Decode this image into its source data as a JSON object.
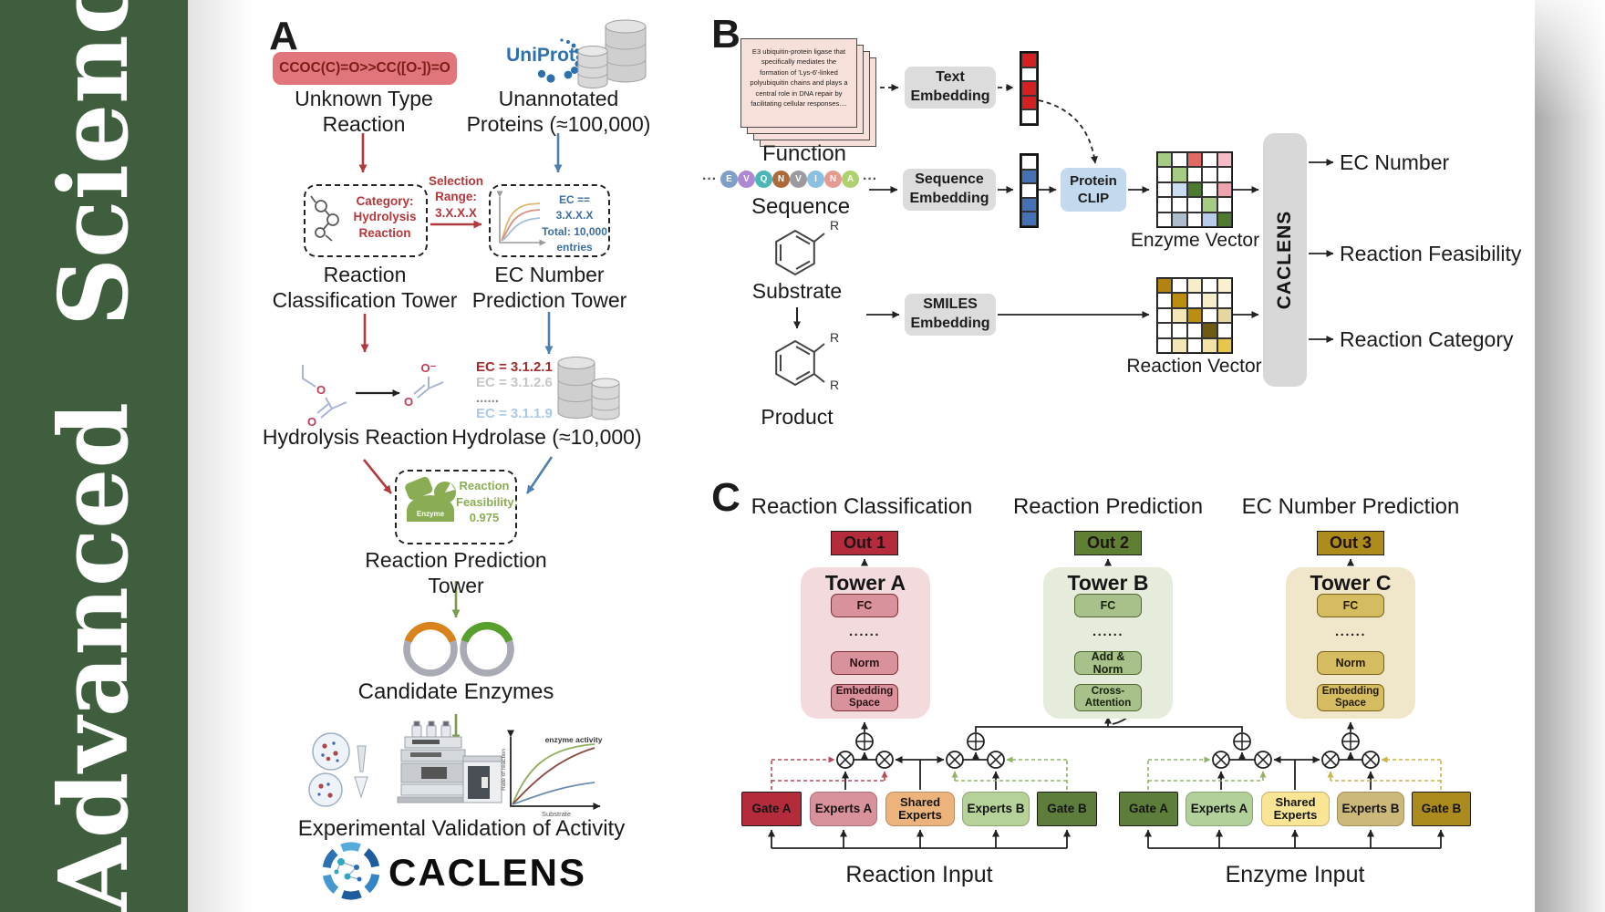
{
  "journal": {
    "title": "Advanced Science"
  },
  "panelA": {
    "label": "A",
    "smiles": "CCOC(C)=O>>CC([O-])=O",
    "unknown_reaction": [
      "Unknown Type",
      "Reaction"
    ],
    "uniprot": "UniProt",
    "unannotated_proteins": [
      "Unannotated",
      "Proteins (≈100,000)"
    ],
    "category_box": [
      "Category:",
      "Hydrolysis",
      "Reaction"
    ],
    "selection_range": [
      "Selection",
      "Range:",
      "3.X.X.X"
    ],
    "ec_box": [
      "EC == 3.X.X.X",
      "Total: 10,000",
      "entries"
    ],
    "classification_tower": [
      "Reaction",
      "Classification Tower"
    ],
    "ec_tower": [
      "EC Number",
      "Prediction Tower"
    ],
    "hydrolysis_reaction": "Hydrolysis Reaction",
    "ec_list": [
      {
        "text": "EC = 3.1.2.1",
        "color": "#a12c2c"
      },
      {
        "text": "EC = 3.1.2.6",
        "color": "#c6c6c6"
      },
      {
        "text": "......",
        "color": "#8a8a8a"
      },
      {
        "text": "EC = 3.1.1.9",
        "color": "#abc8e6"
      }
    ],
    "hydrolase": "Hydrolase (≈10,000)",
    "enzyme_badge": "Enzyme",
    "feasibility_box": [
      "Reaction",
      "Feasibility:",
      "0.975"
    ],
    "prediction_tower": "Reaction Prediction Tower",
    "candidate_enzymes": "Candidate Enzymes",
    "validation": "Experimental Validation of Activity",
    "logo_text": "CACLENS",
    "atoms": {
      "o": "O",
      "o_minus": "O⁻"
    },
    "graph": {
      "title": "enzyme activity",
      "xlabel": "Substrate",
      "ylabel": "Rate of reaction"
    }
  },
  "panelB": {
    "label": "B",
    "function_card": "E3 ubiquitin-protein ligase that specifically mediates the formation of 'Lys-6'-linked polyubiquitin chains and plays a central role in DNA repair by facilitating cellular responses....",
    "function_label": "Function",
    "ellipsis": "···",
    "sequence_residues": [
      {
        "letter": "E",
        "color": "#7f9fc6"
      },
      {
        "letter": "V",
        "color": "#ae88d2"
      },
      {
        "letter": "Q",
        "color": "#4ab6b8"
      },
      {
        "letter": "N",
        "color": "#ad6a38"
      },
      {
        "letter": "V",
        "color": "#9a9aa0"
      },
      {
        "letter": "I",
        "color": "#8ac0e2"
      },
      {
        "letter": "N",
        "color": "#e69a92"
      },
      {
        "letter": "A",
        "color": "#aed16e"
      }
    ],
    "sequence_label": "Sequence",
    "substrate_label": "Substrate",
    "product_label": "Product",
    "r_group": "R",
    "text_embedding": [
      "Text",
      "Embedding"
    ],
    "sequence_embedding": [
      "Sequence",
      "Embedding"
    ],
    "smiles_embedding": [
      "SMILES",
      "Embedding"
    ],
    "protein_clip": [
      "Protein",
      "CLIP"
    ],
    "text_vector": [
      "#d42020",
      "#ffffff",
      "#d42020",
      "#d42020",
      "#ffffff"
    ],
    "sequence_vector": [
      "#ffffff",
      "#4472b4",
      "#ffffff",
      "#4472b4",
      "#4472b4"
    ],
    "enzyme_matrix": [
      [
        "#a6cb82",
        "#ffffff",
        "#e26a66",
        "#ffffff",
        "#f5bcc6"
      ],
      [
        "#ffffff",
        "#a6cb82",
        "#ffffff",
        "#ffffff",
        "#ffffff"
      ],
      [
        "#ffffff",
        "#c9dcf0",
        "#4d7a2e",
        "#ffffff",
        "#eda4ac"
      ],
      [
        "#ffffff",
        "#ffffff",
        "#ffffff",
        "#a6cb82",
        "#ffffff"
      ],
      [
        "#ffffff",
        "#aebccb",
        "#ffffff",
        "#b9cdea",
        "#4d7a2e"
      ]
    ],
    "reaction_matrix": [
      [
        "#b3830f",
        "#ffffff",
        "#f6eecb",
        "#ffffff",
        "#f8f0d0"
      ],
      [
        "#ffffff",
        "#bb8d10",
        "#ffffff",
        "#f6eecb",
        "#ffffff"
      ],
      [
        "#ffffff",
        "#f3e7b8",
        "#bb8d10",
        "#ffffff",
        "#e6d7a2"
      ],
      [
        "#ffffff",
        "#ffffff",
        "#ffffff",
        "#6e5a10",
        "#ffffff"
      ],
      [
        "#ffffff",
        "#f3e7b8",
        "#ffffff",
        "#f2e2a6",
        "#e7c64e"
      ]
    ],
    "enzyme_vector_label": "Enzyme Vector",
    "reaction_vector_label": "Reaction Vector",
    "caclens": "CACLENS",
    "outputs": [
      "EC Number",
      "Reaction Feasibility",
      "Reaction Category"
    ]
  },
  "panelC": {
    "label": "C",
    "headers": [
      "Reaction Classification",
      "Reaction Prediction",
      "EC Number Prediction"
    ],
    "outs": [
      "Out 1",
      "Out 2",
      "Out 3"
    ],
    "towers": [
      {
        "title": "Tower A",
        "layers": [
          "FC",
          "......",
          "Norm",
          "Embedding Space"
        ]
      },
      {
        "title": "Tower B",
        "layers": [
          "FC",
          "......",
          "Add & Norm",
          "Cross-Attention"
        ]
      },
      {
        "title": "Tower C",
        "layers": [
          "FC",
          "......",
          "Norm",
          "Embedding Space"
        ]
      }
    ],
    "moe": {
      "gate_a": "Gate A",
      "experts_a": "Experts A",
      "shared": "Shared Experts",
      "experts_b": "Experts B",
      "gate_b": "Gate B"
    },
    "inputs": [
      "Reaction Input",
      "Enzyme Input"
    ],
    "colors": {
      "out1": "#b42c3c",
      "out2": "#5f8033",
      "out3": "#ad8c1c",
      "gate_red": "#b84a5a",
      "gate_green": "#8fb468",
      "gate_yellow": "#ccb44a"
    }
  }
}
